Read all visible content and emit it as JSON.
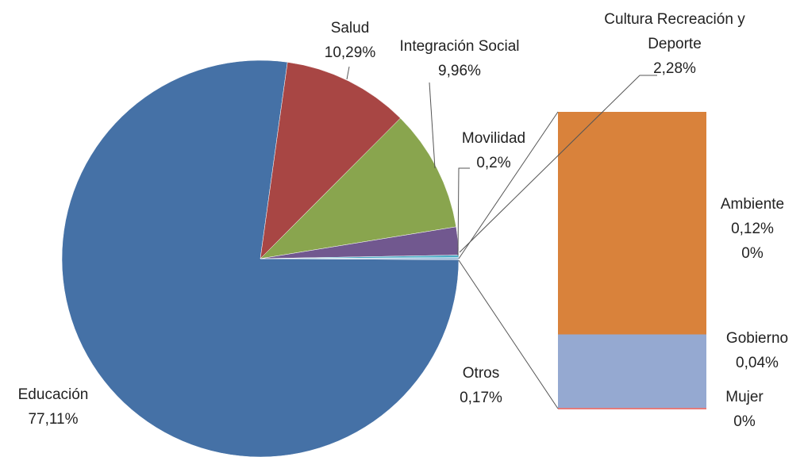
{
  "chart_data": {
    "type": "pie_of_bar",
    "categories": [
      "Educación",
      "Salud",
      "Integración Social",
      "Cultura Recreación y Deporte",
      "Movilidad",
      "Otros"
    ],
    "values": [
      77.11,
      10.29,
      9.96,
      2.28,
      0.2,
      0.17
    ],
    "value_labels": [
      "77,11%",
      "10,29%",
      "9,96%",
      "2,28%",
      "0,2%",
      "0,17%"
    ],
    "colors": [
      "#4571a6",
      "#a84644",
      "#89a54e",
      "#71588f",
      "#4bacc6",
      "#a6c3df"
    ],
    "bar": {
      "categories": [
        "Ambiente",
        "Gobierno",
        "Mujer"
      ],
      "values": [
        0.12,
        0.04,
        0
      ],
      "value_labels": [
        "0,12%",
        "0,04%",
        "0%"
      ],
      "colors": [
        "#d9823b",
        "#95a9d1",
        "#e57b7b"
      ]
    },
    "extra_labels": [
      "0%"
    ]
  }
}
